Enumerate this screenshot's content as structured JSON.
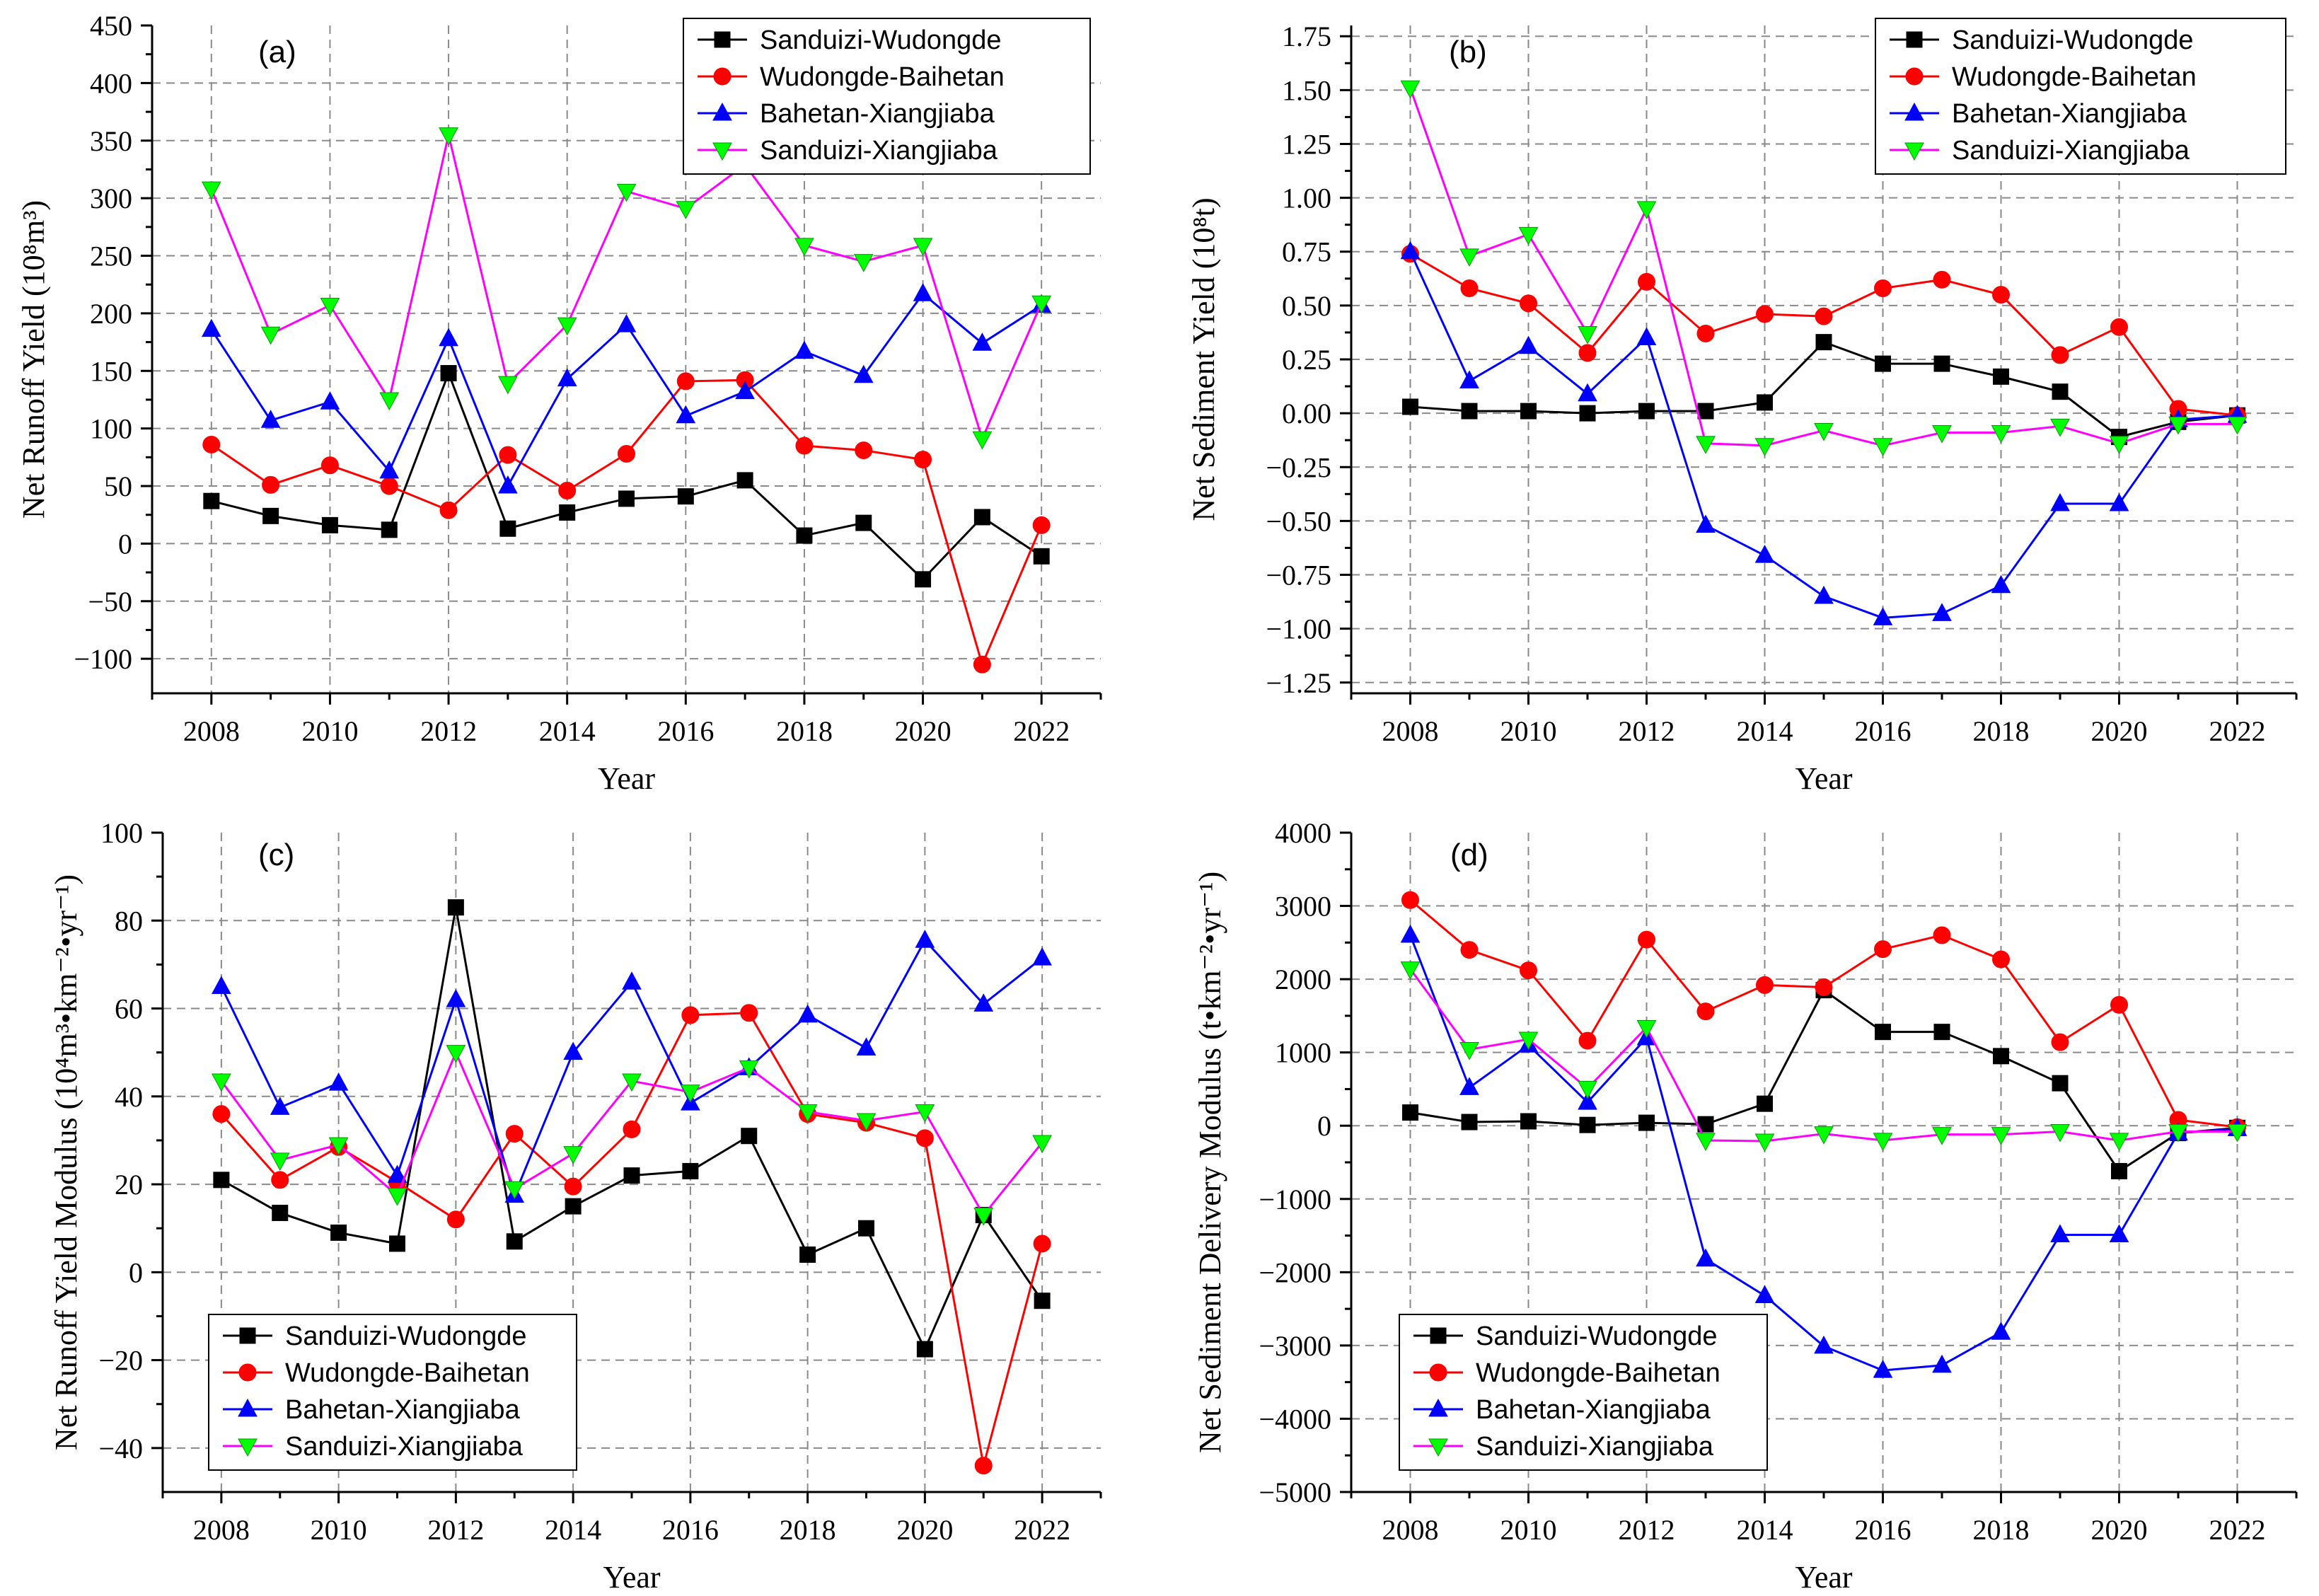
{
  "series_names": [
    "Sanduizi-Wudongde",
    "Wudongde-Baihetan",
    "Bahetan-Xiangjiaba",
    "Sanduizi-Xiangjiaba"
  ],
  "series_style": [
    {
      "line": "#000000",
      "fill": "#000000",
      "marker": "square"
    },
    {
      "line": "#ff0000",
      "fill": "#ff0000",
      "marker": "circle"
    },
    {
      "line": "#0000ff",
      "fill": "#0000ff",
      "marker": "triangle-up"
    },
    {
      "line": "#ff00ff",
      "fill": "#00ff00",
      "marker": "triangle-down"
    }
  ],
  "chart_data": [
    {
      "type": "line",
      "panel_label": "(a)",
      "xlabel": "Year",
      "ylabel": "Net Runoff Yield (10⁸m³)",
      "xlim": [
        2007,
        2023
      ],
      "ylim": [
        -130,
        450
      ],
      "xticks": [
        2008,
        2010,
        2012,
        2014,
        2016,
        2018,
        2020,
        2022
      ],
      "yticks": [
        -100,
        -50,
        0,
        50,
        100,
        150,
        200,
        250,
        300,
        350,
        400,
        450
      ],
      "ytick_labels": [
        "−100",
        "−50",
        "0",
        "50",
        "100",
        "150",
        "200",
        "250",
        "300",
        "350",
        "400",
        "450"
      ],
      "legend": "top-right",
      "x": [
        2008,
        2009,
        2010,
        2011,
        2012,
        2013,
        2014,
        2015,
        2016,
        2017,
        2018,
        2019,
        2020,
        2021,
        2022
      ],
      "series": [
        {
          "name": "Sanduizi-Wudongde",
          "values": [
            37,
            24,
            16,
            12,
            148,
            13,
            27,
            39,
            41,
            55,
            7,
            18,
            -31,
            23,
            -11
          ]
        },
        {
          "name": "Wudongde-Baihetan",
          "values": [
            86,
            51,
            68,
            50,
            29,
            77,
            46,
            78,
            141,
            142,
            85,
            81,
            73,
            -105,
            16
          ]
        },
        {
          "name": "Bahetan-Xiangjiaba",
          "values": [
            186,
            107,
            123,
            63,
            178,
            50,
            143,
            190,
            111,
            132,
            167,
            146,
            217,
            174,
            207
          ]
        },
        {
          "name": "Sanduizi-Xiangjiaba",
          "values": [
            308,
            182,
            207,
            125,
            355,
            139,
            190,
            306,
            291,
            329,
            259,
            245,
            259,
            91,
            209
          ]
        }
      ]
    },
    {
      "type": "line",
      "panel_label": "(b)",
      "xlabel": "Year",
      "ylabel": "Net Sediment Yield (10⁸t)",
      "xlim": [
        2007,
        2023
      ],
      "ylim": [
        -1.3,
        1.8
      ],
      "xticks": [
        2008,
        2010,
        2012,
        2014,
        2016,
        2018,
        2020,
        2022
      ],
      "yticks": [
        -1.25,
        -1.0,
        -0.75,
        -0.5,
        -0.25,
        0.0,
        0.25,
        0.5,
        0.75,
        1.0,
        1.25,
        1.5,
        1.75
      ],
      "ytick_labels": [
        "−1.25",
        "−1.00",
        "−0.75",
        "−0.50",
        "−0.25",
        "0.00",
        "0.25",
        "0.50",
        "0.75",
        "1.00",
        "1.25",
        "1.50",
        "1.75"
      ],
      "legend": "top-right",
      "x": [
        2008,
        2009,
        2010,
        2011,
        2012,
        2013,
        2014,
        2015,
        2016,
        2017,
        2018,
        2019,
        2020,
        2021,
        2022
      ],
      "series": [
        {
          "name": "Sanduizi-Wudongde",
          "values": [
            0.03,
            0.01,
            0.01,
            0.0,
            0.01,
            0.01,
            0.05,
            0.33,
            0.23,
            0.23,
            0.17,
            0.1,
            -0.11,
            -0.04,
            -0.01
          ]
        },
        {
          "name": "Wudongde-Baihetan",
          "values": [
            0.74,
            0.58,
            0.51,
            0.28,
            0.61,
            0.37,
            0.46,
            0.45,
            0.58,
            0.62,
            0.55,
            0.27,
            0.4,
            0.02,
            -0.01
          ]
        },
        {
          "name": "Bahetan-Xiangjiaba",
          "values": [
            0.75,
            0.15,
            0.31,
            0.09,
            0.35,
            -0.52,
            -0.66,
            -0.85,
            -0.95,
            -0.93,
            -0.8,
            -0.42,
            -0.42,
            -0.03,
            -0.01
          ]
        },
        {
          "name": "Sanduizi-Xiangjiaba",
          "values": [
            1.51,
            0.73,
            0.83,
            0.37,
            0.95,
            -0.14,
            -0.15,
            -0.08,
            -0.15,
            -0.09,
            -0.09,
            -0.06,
            -0.14,
            -0.05,
            -0.05
          ]
        }
      ]
    },
    {
      "type": "line",
      "panel_label": "(c)",
      "xlabel": "Year",
      "ylabel": "Net Runoff Yield Modulus (10⁴m³•km⁻²•yr⁻¹)",
      "xlim": [
        2007,
        2023
      ],
      "ylim": [
        -50,
        100
      ],
      "xticks": [
        2008,
        2010,
        2012,
        2014,
        2016,
        2018,
        2020,
        2022
      ],
      "yticks": [
        -40,
        -20,
        0,
        20,
        40,
        60,
        80,
        100
      ],
      "ytick_labels": [
        "−40",
        "−20",
        "0",
        "20",
        "40",
        "60",
        "80",
        "100"
      ],
      "legend": "bottom-left",
      "x": [
        2008,
        2009,
        2010,
        2011,
        2012,
        2013,
        2014,
        2015,
        2016,
        2017,
        2018,
        2019,
        2020,
        2021,
        2022
      ],
      "series": [
        {
          "name": "Sanduizi-Wudongde",
          "values": [
            21,
            13.5,
            9,
            6.5,
            83,
            7,
            15,
            22,
            23,
            31,
            4,
            10,
            -17.5,
            13,
            -6.5
          ]
        },
        {
          "name": "Wudongde-Baihetan",
          "values": [
            36,
            21,
            28.5,
            20.5,
            12,
            31.5,
            19.5,
            32.5,
            58.5,
            59,
            36,
            34,
            30.5,
            -44,
            6.5
          ]
        },
        {
          "name": "Bahetan-Xiangjiaba",
          "values": [
            65,
            37.5,
            43,
            22,
            62,
            17.5,
            50,
            66,
            38.5,
            46.5,
            58.5,
            51,
            75.5,
            61,
            71.5
          ]
        },
        {
          "name": "Sanduizi-Xiangjiaba",
          "values": [
            43.5,
            25.5,
            29,
            17.5,
            50,
            19,
            27,
            43.5,
            41,
            46.5,
            36.5,
            34.5,
            36.5,
            13,
            29.5
          ]
        }
      ]
    },
    {
      "type": "line",
      "panel_label": "(d)",
      "xlabel": "Year",
      "ylabel": "Net  Sediment Delivery Modulus (t•km⁻²•yr⁻¹)",
      "xlim": [
        2007,
        2023
      ],
      "ylim": [
        -5000,
        4000
      ],
      "xticks": [
        2008,
        2010,
        2012,
        2014,
        2016,
        2018,
        2020,
        2022
      ],
      "yticks": [
        -5000,
        -4000,
        -3000,
        -2000,
        -1000,
        0,
        1000,
        2000,
        3000,
        4000
      ],
      "ytick_labels": [
        "−5000",
        "−4000",
        "−3000",
        "−2000",
        "−1000",
        "0",
        "1000",
        "2000",
        "3000",
        "4000"
      ],
      "legend": "bottom-left",
      "x": [
        2008,
        2009,
        2010,
        2011,
        2012,
        2013,
        2014,
        2015,
        2016,
        2017,
        2018,
        2019,
        2020,
        2021,
        2022
      ],
      "series": [
        {
          "name": "Sanduizi-Wudongde",
          "values": [
            180,
            50,
            60,
            10,
            40,
            20,
            300,
            1850,
            1280,
            1280,
            950,
            580,
            -620,
            -100,
            -30
          ]
        },
        {
          "name": "Wudongde-Baihetan",
          "values": [
            3080,
            2400,
            2120,
            1160,
            2540,
            1560,
            1920,
            1890,
            2410,
            2600,
            2270,
            1140,
            1650,
            80,
            -20
          ]
        },
        {
          "name": "Bahetan-Xiangjiaba",
          "values": [
            2600,
            520,
            1100,
            320,
            1200,
            -1820,
            -2320,
            -3010,
            -3340,
            -3270,
            -2820,
            -1490,
            -1490,
            -100,
            -40
          ]
        },
        {
          "name": "Sanduizi-Xiangjiaba",
          "values": [
            2140,
            1040,
            1180,
            510,
            1340,
            -200,
            -210,
            -110,
            -200,
            -120,
            -120,
            -80,
            -200,
            -80,
            -80
          ]
        }
      ]
    }
  ]
}
